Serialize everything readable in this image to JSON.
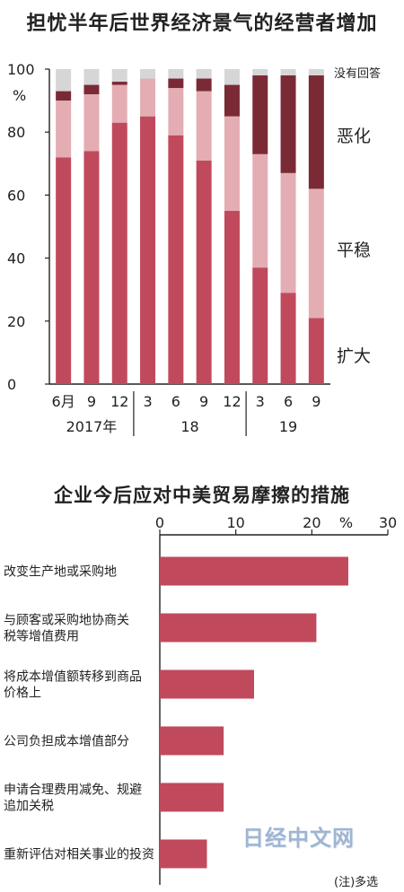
{
  "chart_data": [
    {
      "type": "bar",
      "stacked": true,
      "title": "担忧半年后世界经济景气的经营者增加",
      "ylabel": "%",
      "ylim": [
        0,
        100
      ],
      "yticks": [
        "0",
        "20",
        "40",
        "60",
        "80",
        "100"
      ],
      "categories": [
        "6月",
        "9",
        "12",
        "3",
        "6",
        "9",
        "12",
        "3",
        "6",
        "9"
      ],
      "year_labels": [
        "2017年",
        "18",
        "19"
      ],
      "series": [
        {
          "name": "扩大",
          "color": "#c04a5c",
          "values": [
            72,
            74,
            83,
            85,
            79,
            71,
            55,
            37,
            29,
            21
          ]
        },
        {
          "name": "平稳",
          "color": "#e3adb3",
          "values": [
            18,
            18,
            12,
            12,
            15,
            22,
            30,
            36,
            38,
            41
          ]
        },
        {
          "name": "恶化",
          "color": "#7a2a35",
          "values": [
            3,
            3,
            1,
            0,
            3,
            4,
            10,
            25,
            31,
            36
          ]
        },
        {
          "name": "没有回答",
          "color": "#d6d6d6",
          "values": [
            7,
            5,
            4,
            3,
            3,
            3,
            5,
            2,
            2,
            2
          ]
        }
      ]
    },
    {
      "type": "bar",
      "orientation": "horizontal",
      "title": "企业今后应对中美贸易摩擦的措施",
      "xlim": [
        0,
        30
      ],
      "xticks": [
        "0",
        "10",
        "20",
        "30"
      ],
      "unit": "%",
      "color": "#c04a5c",
      "categories": [
        [
          "改变生产地或采购地"
        ],
        [
          "与顾客或采购地协商关",
          "税等增值费用"
        ],
        [
          "将成本增值额转移到商品",
          "价格上"
        ],
        [
          "公司负担成本增值部分"
        ],
        [
          "申请合理费用减免、规避",
          "追加关税"
        ],
        [
          "重新评估对相关事业的投资"
        ]
      ],
      "values": [
        24.8,
        20.6,
        12.4,
        8.4,
        8.4,
        6.2
      ],
      "note": "(注)多选"
    }
  ],
  "watermark": "日经中文网"
}
